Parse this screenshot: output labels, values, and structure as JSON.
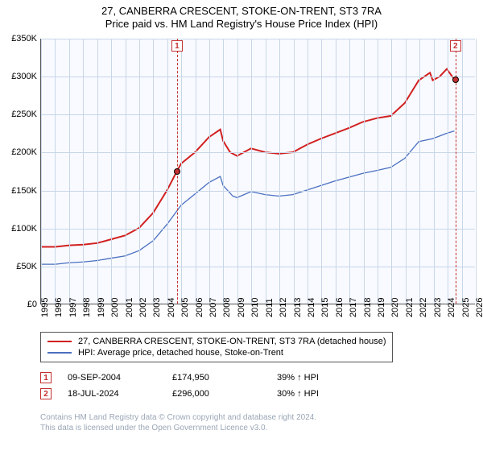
{
  "title": {
    "line1": "27, CANBERRA CRESCENT, STOKE-ON-TRENT, ST3 7RA",
    "line2": "Price paid vs. HM Land Registry's House Price Index (HPI)"
  },
  "chart": {
    "type": "line",
    "background_color": "#f8faff",
    "grid_color": "#c9d6e7",
    "axis_color": "#555555",
    "y": {
      "min": 0,
      "max": 350000,
      "step": 50000,
      "labels": [
        "£0",
        "£50K",
        "£100K",
        "£150K",
        "£200K",
        "£250K",
        "£300K",
        "£350K"
      ]
    },
    "x": {
      "min": 1995,
      "max": 2026,
      "step": 1,
      "labels": [
        "1995",
        "1996",
        "1997",
        "1998",
        "1999",
        "2000",
        "2001",
        "2002",
        "2003",
        "2004",
        "2005",
        "2006",
        "2007",
        "2008",
        "2009",
        "2010",
        "2011",
        "2012",
        "2013",
        "2014",
        "2015",
        "2016",
        "2017",
        "2018",
        "2019",
        "2020",
        "2021",
        "2022",
        "2023",
        "2024",
        "2025",
        "2026"
      ]
    },
    "series": [
      {
        "name": "price_paid",
        "legend": "27, CANBERRA CRESCENT, STOKE-ON-TRENT, ST3 7RA (detached house)",
        "color": "#d22020",
        "width": 2,
        "points": [
          [
            1995,
            75000
          ],
          [
            1996,
            75000
          ],
          [
            1997,
            77000
          ],
          [
            1998,
            78000
          ],
          [
            1999,
            80000
          ],
          [
            2000,
            85000
          ],
          [
            2001,
            90000
          ],
          [
            2002,
            100000
          ],
          [
            2003,
            120000
          ],
          [
            2004,
            150000
          ],
          [
            2004.7,
            174950
          ],
          [
            2005,
            185000
          ],
          [
            2006,
            200000
          ],
          [
            2007,
            220000
          ],
          [
            2007.8,
            230000
          ],
          [
            2008,
            215000
          ],
          [
            2008.5,
            200000
          ],
          [
            2009,
            195000
          ],
          [
            2010,
            205000
          ],
          [
            2011,
            200000
          ],
          [
            2012,
            198000
          ],
          [
            2013,
            200000
          ],
          [
            2014,
            210000
          ],
          [
            2015,
            218000
          ],
          [
            2016,
            225000
          ],
          [
            2017,
            232000
          ],
          [
            2018,
            240000
          ],
          [
            2019,
            245000
          ],
          [
            2020,
            248000
          ],
          [
            2021,
            265000
          ],
          [
            2022,
            295000
          ],
          [
            2022.8,
            305000
          ],
          [
            2023,
            295000
          ],
          [
            2023.5,
            300000
          ],
          [
            2024,
            310000
          ],
          [
            2024.55,
            296000
          ]
        ]
      },
      {
        "name": "hpi",
        "legend": "HPI: Average price, detached house, Stoke-on-Trent",
        "color": "#4a6fbf",
        "width": 1.3,
        "points": [
          [
            1995,
            52000
          ],
          [
            1996,
            52000
          ],
          [
            1997,
            54000
          ],
          [
            1998,
            55000
          ],
          [
            1999,
            57000
          ],
          [
            2000,
            60000
          ],
          [
            2001,
            63000
          ],
          [
            2002,
            70000
          ],
          [
            2003,
            83000
          ],
          [
            2004,
            105000
          ],
          [
            2005,
            130000
          ],
          [
            2006,
            145000
          ],
          [
            2007,
            160000
          ],
          [
            2007.8,
            168000
          ],
          [
            2008,
            156000
          ],
          [
            2008.7,
            142000
          ],
          [
            2009,
            140000
          ],
          [
            2010,
            148000
          ],
          [
            2011,
            144000
          ],
          [
            2012,
            142000
          ],
          [
            2013,
            144000
          ],
          [
            2014,
            150000
          ],
          [
            2015,
            156000
          ],
          [
            2016,
            162000
          ],
          [
            2017,
            167000
          ],
          [
            2018,
            172000
          ],
          [
            2019,
            176000
          ],
          [
            2020,
            180000
          ],
          [
            2021,
            192000
          ],
          [
            2022,
            214000
          ],
          [
            2023,
            218000
          ],
          [
            2024,
            225000
          ],
          [
            2024.55,
            228000
          ]
        ]
      }
    ],
    "markers": [
      {
        "id": "1",
        "year": 2004.7,
        "price": 174950
      },
      {
        "id": "2",
        "year": 2024.55,
        "price": 296000
      }
    ]
  },
  "sales": [
    {
      "num": "1",
      "date": "09-SEP-2004",
      "price": "£174,950",
      "diff": "39% ↑ HPI"
    },
    {
      "num": "2",
      "date": "18-JUL-2024",
      "price": "£296,000",
      "diff": "30% ↑ HPI"
    }
  ],
  "footer": {
    "line1": "Contains HM Land Registry data © Crown copyright and database right 2024.",
    "line2": "This data is licensed under the Open Government Licence v3.0."
  }
}
